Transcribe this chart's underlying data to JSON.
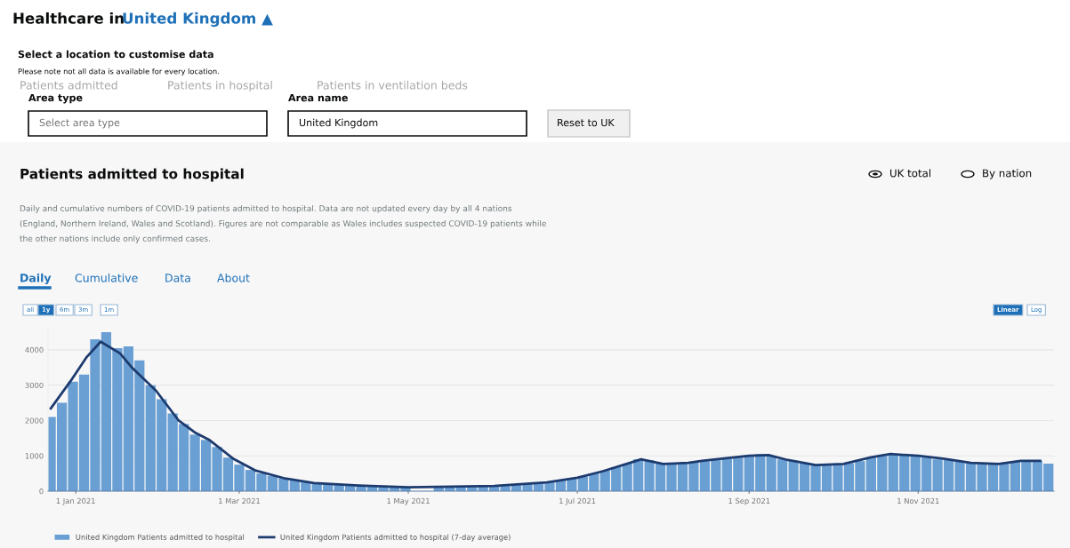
{
  "chart_data": {
    "type": "bar",
    "title": "Patients admitted to hospital",
    "subtitle": "Daily and cumulative numbers of COVID-19 patients admitted to hospital. Data are not updated every day by all 4 nations (England, Northern Ireland, Wales and Scotland). Figures are not comparable as Wales includes suspected COVID-19 patients while the other nations include only confirmed cases.",
    "annotations": [
      "Healthcare in",
      "United Kingdom ▲",
      "Select a location to customise data",
      "Please note not all data is available for every location.",
      "Patients admitted",
      "Patients in hospital",
      "Patients in ventilation beds",
      "Area type",
      "Select area type",
      "Area name",
      "United Kingdom",
      "Reset to UK",
      "UK total",
      "By nation",
      "Daily",
      "Cumulative",
      "Data",
      "About",
      "all",
      "1y",
      "6m",
      "3m",
      "1m",
      "Linear",
      "Log"
    ],
    "series": [
      {
        "name": "United Kingdom Patients admitted to hospital",
        "color": "#6a9fd4",
        "x": [
          "2020-12-23",
          "2020-12-27",
          "2020-12-31",
          "2021-01-04",
          "2021-01-08",
          "2021-01-12",
          "2021-01-16",
          "2021-01-20",
          "2021-01-24",
          "2021-01-28",
          "2021-02-01",
          "2021-02-05",
          "2021-02-09",
          "2021-02-13",
          "2021-02-17",
          "2021-02-21",
          "2021-02-25",
          "2021-03-01",
          "2021-03-05",
          "2021-03-09",
          "2021-03-13",
          "2021-03-17",
          "2021-03-21",
          "2021-03-25",
          "2021-03-29",
          "2021-04-02",
          "2021-04-06",
          "2021-04-10",
          "2021-04-14",
          "2021-04-18",
          "2021-04-22",
          "2021-04-26",
          "2021-04-30",
          "2021-05-04",
          "2021-05-08",
          "2021-05-12",
          "2021-05-16",
          "2021-05-20",
          "2021-05-24",
          "2021-05-28",
          "2021-06-01",
          "2021-06-05",
          "2021-06-09",
          "2021-06-13",
          "2021-06-17",
          "2021-06-21",
          "2021-06-25",
          "2021-06-29",
          "2021-07-03",
          "2021-07-07",
          "2021-07-11",
          "2021-07-15",
          "2021-07-19",
          "2021-07-23",
          "2021-07-27",
          "2021-07-31",
          "2021-08-04",
          "2021-08-08",
          "2021-08-12",
          "2021-08-16",
          "2021-08-20",
          "2021-08-24",
          "2021-08-28",
          "2021-09-01",
          "2021-09-05",
          "2021-09-09",
          "2021-09-13",
          "2021-09-17",
          "2021-09-21",
          "2021-09-25",
          "2021-09-29",
          "2021-10-03",
          "2021-10-07",
          "2021-10-11",
          "2021-10-15",
          "2021-10-19",
          "2021-10-23",
          "2021-10-27",
          "2021-10-31",
          "2021-11-04",
          "2021-11-08",
          "2021-11-12",
          "2021-11-16",
          "2021-11-20",
          "2021-11-24",
          "2021-11-28",
          "2021-12-02",
          "2021-12-06",
          "2021-12-10",
          "2021-12-14",
          "2021-12-18"
        ],
        "values": [
          2100,
          2500,
          3100,
          3300,
          4300,
          4500,
          4050,
          4100,
          3700,
          3000,
          2600,
          2200,
          1900,
          1600,
          1450,
          1250,
          950,
          750,
          600,
          500,
          430,
          370,
          300,
          250,
          220,
          200,
          180,
          160,
          150,
          130,
          120,
          110,
          100,
          null,
          null,
          100,
          110,
          110,
          120,
          130,
          150,
          160,
          180,
          200,
          230,
          260,
          300,
          360,
          420,
          500,
          580,
          680,
          780,
          900,
          870,
          780,
          760,
          790,
          820,
          850,
          900,
          920,
          950,
          980,
          1050,
          1000,
          900,
          860,
          780,
          740,
          730,
          750,
          790,
          850,
          950,
          1000,
          1050,
          1020,
          1000,
          950,
          900,
          880,
          840,
          800,
          760,
          760,
          780,
          830,
          860,
          860,
          780
        ]
      },
      {
        "name": "United Kingdom Patients admitted to hospital (7-day average)",
        "type": "line",
        "color": "#1d3b6e",
        "x": [
          "2020-12-23",
          "2020-12-30",
          "2021-01-05",
          "2021-01-10",
          "2021-01-17",
          "2021-01-21",
          "2021-01-30",
          "2021-02-07",
          "2021-02-13",
          "2021-02-18",
          "2021-02-27",
          "2021-03-07",
          "2021-03-17",
          "2021-03-28",
          "2021-04-13",
          "2021-05-01",
          "2021-06-01",
          "2021-06-20",
          "2021-07-01",
          "2021-07-10",
          "2021-07-20",
          "2021-07-24",
          "2021-08-01",
          "2021-08-10",
          "2021-08-15",
          "2021-08-20",
          "2021-09-01",
          "2021-09-08",
          "2021-09-15",
          "2021-09-25",
          "2021-10-05",
          "2021-10-15",
          "2021-10-22",
          "2021-11-01",
          "2021-11-10",
          "2021-11-20",
          "2021-11-30",
          "2021-12-08",
          "2021-12-15"
        ],
        "values": [
          2340,
          3100,
          3800,
          4230,
          3900,
          3520,
          2840,
          2010,
          1660,
          1460,
          910,
          580,
          370,
          230,
          160,
          110,
          150,
          250,
          380,
          560,
          800,
          900,
          770,
          800,
          860,
          900,
          1000,
          1020,
          880,
          740,
          770,
          960,
          1050,
          1000,
          920,
          800,
          770,
          860,
          860
        ]
      }
    ],
    "xlim": [
      "2020-12-22",
      "2021-12-20"
    ],
    "xticks": [
      {
        "value": "2021-01-01",
        "label": "1 Jan 2021"
      },
      {
        "value": "2021-03-01",
        "label": "1 Mar 2021"
      },
      {
        "value": "2021-05-01",
        "label": "1 May 2021"
      },
      {
        "value": "2021-07-01",
        "label": "1 Jul 2021"
      },
      {
        "value": "2021-09-01",
        "label": "1 Sep 2021"
      },
      {
        "value": "2021-11-01",
        "label": "1 Nov 2021"
      }
    ],
    "ylim": [
      0,
      4600
    ],
    "yticks": [
      0,
      1000,
      2000,
      3000,
      4000
    ],
    "grid": "y",
    "legend": "bottom"
  }
}
